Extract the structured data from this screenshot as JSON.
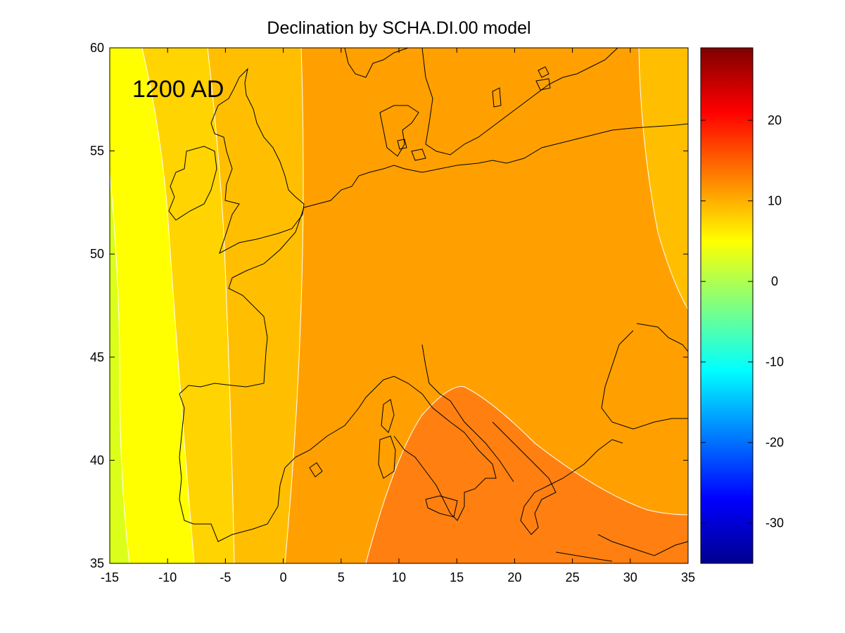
{
  "title": "Declination by SCHA.DI.00 model",
  "annotation": "1200 AD",
  "map": {
    "lon_range": [
      -15,
      35
    ],
    "lat_range": [
      35,
      60
    ],
    "x_ticks": [
      "-15",
      "-10",
      "-5",
      "0",
      "5",
      "10",
      "15",
      "20",
      "25",
      "30",
      "35"
    ],
    "y_ticks": [
      "35",
      "40",
      "45",
      "50",
      "55",
      "60"
    ],
    "contour_bands": [
      {
        "level_min": 0,
        "level_max": 2,
        "color": "#dcff1a"
      },
      {
        "level_min": 2,
        "level_max": 4,
        "color": "#ffff00"
      },
      {
        "level_min": 4,
        "level_max": 6,
        "color": "#ffd400"
      },
      {
        "level_min": 6,
        "level_max": 8,
        "color": "#ffbf00"
      },
      {
        "level_min": 8,
        "level_max": 10,
        "color": "#ffa000"
      },
      {
        "level_min": 10,
        "level_max": 12,
        "color": "#ff8010"
      }
    ]
  },
  "colorbar": {
    "range": [
      -35,
      29
    ],
    "tick_labels": [
      "20",
      "10",
      "0",
      "-10",
      "-20",
      "-30"
    ],
    "tick_values": [
      20,
      10,
      0,
      -10,
      -20,
      -30
    ],
    "colormap": "jet"
  }
}
